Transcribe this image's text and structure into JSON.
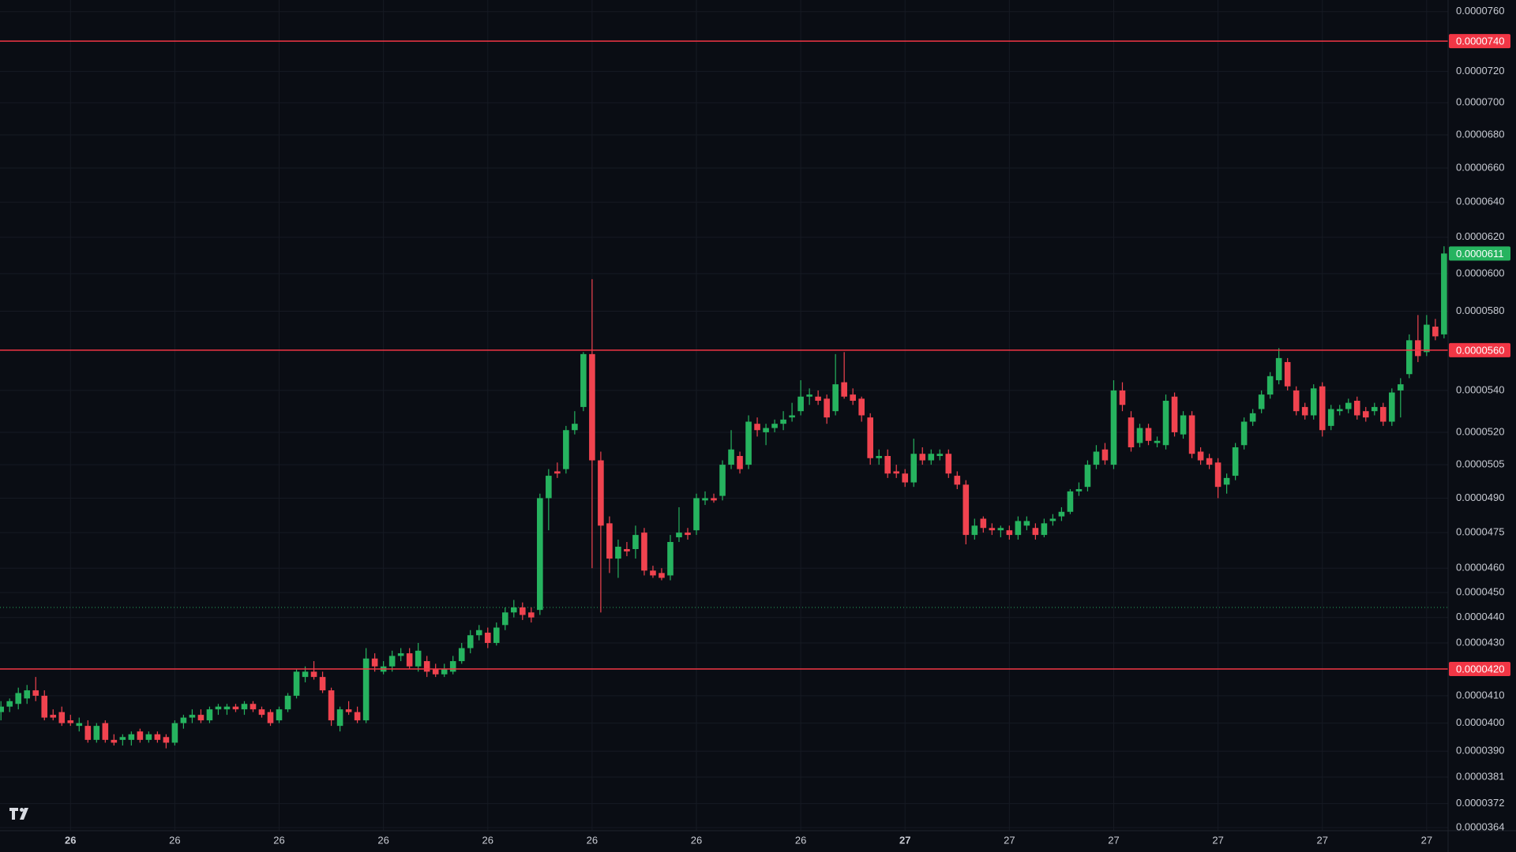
{
  "chart_data": {
    "type": "candlestick",
    "log_scale": true,
    "grid": true,
    "up_color": "#26b35f",
    "down_color": "#f0434f",
    "level_color": "#f23645",
    "reference_color": "#26a65b",
    "ylim": [
      3.63e-05,
      7.68e-05
    ],
    "yticks": [
      {
        "value": 7.6e-05,
        "label": "0.0000760"
      },
      {
        "value": 7.2e-05,
        "label": "0.0000720"
      },
      {
        "value": 7e-05,
        "label": "0.0000700"
      },
      {
        "value": 6.8e-05,
        "label": "0.0000680"
      },
      {
        "value": 6.6e-05,
        "label": "0.0000660"
      },
      {
        "value": 6.4e-05,
        "label": "0.0000640"
      },
      {
        "value": 6.2e-05,
        "label": "0.0000620"
      },
      {
        "value": 6e-05,
        "label": "0.0000600"
      },
      {
        "value": 5.8e-05,
        "label": "0.0000580"
      },
      {
        "value": 5.4e-05,
        "label": "0.0000540"
      },
      {
        "value": 5.2e-05,
        "label": "0.0000520"
      },
      {
        "value": 5.05e-05,
        "label": "0.0000505"
      },
      {
        "value": 4.9e-05,
        "label": "0.0000490"
      },
      {
        "value": 4.75e-05,
        "label": "0.0000475"
      },
      {
        "value": 4.6e-05,
        "label": "0.0000460"
      },
      {
        "value": 4.5e-05,
        "label": "0.0000450"
      },
      {
        "value": 4.4e-05,
        "label": "0.0000440"
      },
      {
        "value": 4.3e-05,
        "label": "0.0000430"
      },
      {
        "value": 4.1e-05,
        "label": "0.0000410"
      },
      {
        "value": 4e-05,
        "label": "0.0000400"
      },
      {
        "value": 3.9e-05,
        "label": "0.0000390"
      },
      {
        "value": 3.81e-05,
        "label": "0.0000381"
      },
      {
        "value": 3.72e-05,
        "label": "0.0000372"
      },
      {
        "value": 3.64e-05,
        "label": "0.0000364"
      }
    ],
    "levels": [
      {
        "value": 7.4e-05,
        "label": "0.0000740"
      },
      {
        "value": 5.6e-05,
        "label": "0.0000560"
      },
      {
        "value": 4.2e-05,
        "label": "0.0000420"
      }
    ],
    "reference_line": 4.44e-05,
    "last_price": {
      "value": 6.11e-05,
      "label": "0.0000611"
    },
    "categories": [
      null,
      null,
      null,
      null,
      null,
      null,
      null,
      null,
      "26",
      null,
      null,
      null,
      null,
      null,
      null,
      null,
      null,
      null,
      null,
      null,
      "26",
      null,
      null,
      null,
      null,
      null,
      null,
      null,
      null,
      null,
      null,
      null,
      "26",
      null,
      null,
      null,
      null,
      null,
      null,
      null,
      null,
      null,
      null,
      null,
      "26",
      null,
      null,
      null,
      null,
      null,
      null,
      null,
      null,
      null,
      null,
      null,
      "26",
      null,
      null,
      null,
      null,
      null,
      null,
      null,
      null,
      null,
      null,
      null,
      "26",
      null,
      null,
      null,
      null,
      null,
      null,
      null,
      null,
      null,
      null,
      null,
      "26",
      null,
      null,
      null,
      null,
      null,
      null,
      null,
      null,
      null,
      null,
      null,
      "26",
      null,
      null,
      null,
      null,
      null,
      null,
      null,
      null,
      null,
      null,
      null,
      "27",
      null,
      null,
      null,
      null,
      null,
      null,
      null,
      null,
      null,
      null,
      null,
      "27",
      null,
      null,
      null,
      null,
      null,
      null,
      null,
      null,
      null,
      null,
      null,
      "27",
      null,
      null,
      null,
      null,
      null,
      null,
      null,
      null,
      null,
      null,
      null,
      "27",
      null,
      null,
      null,
      null,
      null,
      null,
      null,
      null,
      null,
      null,
      null,
      "27",
      null,
      null,
      null,
      null,
      null,
      null,
      null,
      null,
      null,
      null,
      null,
      "27",
      null,
      null
    ],
    "open": [
      4.04e-05,
      4.06e-05,
      4.07e-05,
      4.09e-05,
      4.12e-05,
      4.1e-05,
      4.03e-05,
      4.04e-05,
      4.01e-05,
      3.99e-05,
      3.99e-05,
      3.94e-05,
      4e-05,
      3.94e-05,
      3.94e-05,
      3.94e-05,
      3.97e-05,
      3.94e-05,
      3.96e-05,
      3.95e-05,
      3.93e-05,
      4e-05,
      4.02e-05,
      4.03e-05,
      4.01e-05,
      4.05e-05,
      4.05e-05,
      4.06e-05,
      4.05e-05,
      4.07e-05,
      4.05e-05,
      4.04e-05,
      4.01e-05,
      4.05e-05,
      4.1e-05,
      4.17e-05,
      4.19e-05,
      4.17e-05,
      4.12e-05,
      3.99e-05,
      4.05e-05,
      4.04e-05,
      4.01e-05,
      4.24e-05,
      4.19e-05,
      4.21e-05,
      4.25e-05,
      4.26e-05,
      4.21e-05,
      4.23e-05,
      4.2e-05,
      4.18e-05,
      4.19e-05,
      4.23e-05,
      4.28e-05,
      4.33e-05,
      4.34e-05,
      4.3e-05,
      4.37e-05,
      4.42e-05,
      4.44e-05,
      4.42e-05,
      4.43e-05,
      4.9e-05,
      5.02e-05,
      5.03e-05,
      5.21e-05,
      5.32e-05,
      5.58e-05,
      5.07e-05,
      4.79e-05,
      4.64e-05,
      4.68e-05,
      4.68e-05,
      4.75e-05,
      4.59e-05,
      4.58e-05,
      4.57e-05,
      4.73e-05,
      4.75e-05,
      4.76e-05,
      4.89e-05,
      4.9e-05,
      4.91e-05,
      5.05e-05,
      5.09e-05,
      5.05e-05,
      5.24e-05,
      5.2e-05,
      5.22e-05,
      5.24e-05,
      5.27e-05,
      5.3e-05,
      5.37e-05,
      5.37e-05,
      5.36e-05,
      5.3e-05,
      5.44e-05,
      5.38e-05,
      5.36e-05,
      5.27e-05,
      5.08e-05,
      5.09e-05,
      5.02e-05,
      5.01e-05,
      4.97e-05,
      5.1e-05,
      5.07e-05,
      5.09e-05,
      5.1e-05,
      5e-05,
      4.96e-05,
      4.74e-05,
      4.81e-05,
      4.77e-05,
      4.76e-05,
      4.76e-05,
      4.74e-05,
      4.78e-05,
      4.77e-05,
      4.74e-05,
      4.8e-05,
      4.82e-05,
      4.84e-05,
      4.93e-05,
      4.95e-05,
      5.05e-05,
      5.12e-05,
      5.05e-05,
      5.4e-05,
      5.27e-05,
      5.15e-05,
      5.22e-05,
      5.15e-05,
      5.14e-05,
      5.37e-05,
      5.19e-05,
      5.28e-05,
      5.11e-05,
      5.08e-05,
      5.06e-05,
      4.96e-05,
      5e-05,
      5.14e-05,
      5.25e-05,
      5.31e-05,
      5.38e-05,
      5.45e-05,
      5.54e-05,
      5.4e-05,
      5.32e-05,
      5.28e-05,
      5.42e-05,
      5.23e-05,
      5.3e-05,
      5.31e-05,
      5.35e-05,
      5.3e-05,
      5.3e-05,
      5.32e-05,
      5.25e-05,
      5.4e-05,
      5.48e-05,
      5.65e-05,
      5.59e-05,
      5.72e-05,
      5.68e-05
    ],
    "high": [
      4.08e-05,
      4.09e-05,
      4.13e-05,
      4.14e-05,
      4.17e-05,
      4.12e-05,
      4.05e-05,
      4.06e-05,
      4.03e-05,
      4.02e-05,
      4.01e-05,
      4e-05,
      4.01e-05,
      3.96e-05,
      3.96e-05,
      3.97e-05,
      3.98e-05,
      3.97e-05,
      3.97e-05,
      3.96e-05,
      4.01e-05,
      4.03e-05,
      4.05e-05,
      4.05e-05,
      4.06e-05,
      4.07e-05,
      4.07e-05,
      4.07e-05,
      4.08e-05,
      4.08e-05,
      4.06e-05,
      4.05e-05,
      4.06e-05,
      4.11e-05,
      4.2e-05,
      4.21e-05,
      4.23e-05,
      4.19e-05,
      4.13e-05,
      4.06e-05,
      4.08e-05,
      4.06e-05,
      4.28e-05,
      4.26e-05,
      4.23e-05,
      4.27e-05,
      4.28e-05,
      4.28e-05,
      4.3e-05,
      4.25e-05,
      4.22e-05,
      4.22e-05,
      4.25e-05,
      4.3e-05,
      4.35e-05,
      4.37e-05,
      4.36e-05,
      4.38e-05,
      4.44e-05,
      4.47e-05,
      4.46e-05,
      4.44e-05,
      4.92e-05,
      5.03e-05,
      5.06e-05,
      5.23e-05,
      5.3e-05,
      5.59e-05,
      5.97e-05,
      5.11e-05,
      4.82e-05,
      4.72e-05,
      4.71e-05,
      4.78e-05,
      4.77e-05,
      4.61e-05,
      4.6e-05,
      4.74e-05,
      4.86e-05,
      4.77e-05,
      4.92e-05,
      4.93e-05,
      4.92e-05,
      5.07e-05,
      5.21e-05,
      5.11e-05,
      5.28e-05,
      5.27e-05,
      5.24e-05,
      5.26e-05,
      5.3e-05,
      5.34e-05,
      5.45e-05,
      5.41e-05,
      5.4e-05,
      5.38e-05,
      5.58e-05,
      5.59e-05,
      5.41e-05,
      5.37e-05,
      5.29e-05,
      5.12e-05,
      5.12e-05,
      5.05e-05,
      5.03e-05,
      5.17e-05,
      5.13e-05,
      5.12e-05,
      5.12e-05,
      5.12e-05,
      5.02e-05,
      4.98e-05,
      4.81e-05,
      4.82e-05,
      4.79e-05,
      4.78e-05,
      4.78e-05,
      4.82e-05,
      4.82e-05,
      4.79e-05,
      4.81e-05,
      4.83e-05,
      4.86e-05,
      4.94e-05,
      4.97e-05,
      5.07e-05,
      5.14e-05,
      5.15e-05,
      5.45e-05,
      5.44e-05,
      5.3e-05,
      5.24e-05,
      5.24e-05,
      5.18e-05,
      5.38e-05,
      5.39e-05,
      5.3e-05,
      5.3e-05,
      5.13e-05,
      5.1e-05,
      5.08e-05,
      5.01e-05,
      5.15e-05,
      5.27e-05,
      5.31e-05,
      5.4e-05,
      5.49e-05,
      5.61e-05,
      5.56e-05,
      5.42e-05,
      5.34e-05,
      5.43e-05,
      5.44e-05,
      5.33e-05,
      5.33e-05,
      5.36e-05,
      5.37e-05,
      5.32e-05,
      5.34e-05,
      5.34e-05,
      5.41e-05,
      5.46e-05,
      5.68e-05,
      5.78e-05,
      5.78e-05,
      5.76e-05,
      6.15e-05
    ],
    "low": [
      4.01e-05,
      4.04e-05,
      4.05e-05,
      4.07e-05,
      4.08e-05,
      4.01e-05,
      4.01e-05,
      3.99e-05,
      3.99e-05,
      3.97e-05,
      3.93e-05,
      3.93e-05,
      3.93e-05,
      3.92e-05,
      3.92e-05,
      3.92e-05,
      3.93e-05,
      3.93e-05,
      3.93e-05,
      3.91e-05,
      3.92e-05,
      3.98e-05,
      4e-05,
      4e-05,
      4e-05,
      4.03e-05,
      4.03e-05,
      4.04e-05,
      4.03e-05,
      4.04e-05,
      4.02e-05,
      3.99e-05,
      4e-05,
      4.04e-05,
      4.09e-05,
      4.15e-05,
      4.16e-05,
      4.11e-05,
      3.99e-05,
      3.97e-05,
      4.03e-05,
      4e-05,
      4e-05,
      4.19e-05,
      4.18e-05,
      4.19e-05,
      4.23e-05,
      4.2e-05,
      4.19e-05,
      4.17e-05,
      4.17e-05,
      4.17e-05,
      4.18e-05,
      4.22e-05,
      4.26e-05,
      4.31e-05,
      4.28e-05,
      4.29e-05,
      4.35e-05,
      4.4e-05,
      4.39e-05,
      4.38e-05,
      4.41e-05,
      4.76e-05,
      4.99e-05,
      5.01e-05,
      5.19e-05,
      5.3e-05,
      4.6e-05,
      4.42e-05,
      4.58e-05,
      4.56e-05,
      4.65e-05,
      4.64e-05,
      4.57e-05,
      4.56e-05,
      4.55e-05,
      4.55e-05,
      4.71e-05,
      4.72e-05,
      4.74e-05,
      4.87e-05,
      4.88e-05,
      4.89e-05,
      5.03e-05,
      5.01e-05,
      5.03e-05,
      5.18e-05,
      5.14e-05,
      5.2e-05,
      5.21e-05,
      5.25e-05,
      5.28e-05,
      5.33e-05,
      5.33e-05,
      5.24e-05,
      5.28e-05,
      5.36e-05,
      5.33e-05,
      5.25e-05,
      5.05e-05,
      5.05e-05,
      4.99e-05,
      4.99e-05,
      4.95e-05,
      4.95e-05,
      5.05e-05,
      5.05e-05,
      5.07e-05,
      4.99e-05,
      4.94e-05,
      4.7e-05,
      4.72e-05,
      4.75e-05,
      4.74e-05,
      4.73e-05,
      4.72e-05,
      4.72e-05,
      4.76e-05,
      4.72e-05,
      4.73e-05,
      4.78e-05,
      4.8e-05,
      4.83e-05,
      4.91e-05,
      4.93e-05,
      5.03e-05,
      5.05e-05,
      5.03e-05,
      5.3e-05,
      5.11e-05,
      5.13e-05,
      5.14e-05,
      5.13e-05,
      5.12e-05,
      5.18e-05,
      5.17e-05,
      5.08e-05,
      5.05e-05,
      5.03e-05,
      4.9e-05,
      4.92e-05,
      4.98e-05,
      5.12e-05,
      5.23e-05,
      5.29e-05,
      5.36e-05,
      5.43e-05,
      5.4e-05,
      5.28e-05,
      5.26e-05,
      5.26e-05,
      5.18e-05,
      5.21e-05,
      5.28e-05,
      5.29e-05,
      5.26e-05,
      5.25e-05,
      5.28e-05,
      5.23e-05,
      5.23e-05,
      5.27e-05,
      5.46e-05,
      5.54e-05,
      5.57e-05,
      5.65e-05,
      5.66e-05
    ],
    "close": [
      4.06e-05,
      4.08e-05,
      4.11e-05,
      4.12e-05,
      4.1e-05,
      4.02e-05,
      4.02e-05,
      4e-05,
      4e-05,
      4e-05,
      3.94e-05,
      3.99e-05,
      3.94e-05,
      3.93e-05,
      3.95e-05,
      3.96e-05,
      3.94e-05,
      3.96e-05,
      3.94e-05,
      3.93e-05,
      4e-05,
      4.02e-05,
      4.03e-05,
      4.01e-05,
      4.05e-05,
      4.06e-05,
      4.06e-05,
      4.05e-05,
      4.07e-05,
      4.05e-05,
      4.03e-05,
      4e-05,
      4.05e-05,
      4.1e-05,
      4.19e-05,
      4.19e-05,
      4.17e-05,
      4.12e-05,
      4.01e-05,
      4.05e-05,
      4.04e-05,
      4.01e-05,
      4.24e-05,
      4.21e-05,
      4.21e-05,
      4.25e-05,
      4.26e-05,
      4.21e-05,
      4.27e-05,
      4.19e-05,
      4.18e-05,
      4.2e-05,
      4.23e-05,
      4.28e-05,
      4.33e-05,
      4.35e-05,
      4.3e-05,
      4.36e-05,
      4.42e-05,
      4.44e-05,
      4.41e-05,
      4.4e-05,
      4.9e-05,
      5e-05,
      5.01e-05,
      5.21e-05,
      5.24e-05,
      5.58e-05,
      5.07e-05,
      4.78e-05,
      4.64e-05,
      4.69e-05,
      4.67e-05,
      4.74e-05,
      4.59e-05,
      4.57e-05,
      4.56e-05,
      4.71e-05,
      4.75e-05,
      4.74e-05,
      4.9e-05,
      4.9e-05,
      4.89e-05,
      5.05e-05,
      5.12e-05,
      5.03e-05,
      5.25e-05,
      5.21e-05,
      5.22e-05,
      5.24e-05,
      5.26e-05,
      5.28e-05,
      5.37e-05,
      5.38e-05,
      5.35e-05,
      5.27e-05,
      5.43e-05,
      5.37e-05,
      5.35e-05,
      5.28e-05,
      5.08e-05,
      5.09e-05,
      5.01e-05,
      5.01e-05,
      4.97e-05,
      5.1e-05,
      5.07e-05,
      5.1e-05,
      5.1e-05,
      5.01e-05,
      4.96e-05,
      4.74e-05,
      4.78e-05,
      4.77e-05,
      4.76e-05,
      4.77e-05,
      4.74e-05,
      4.8e-05,
      4.8e-05,
      4.74e-05,
      4.79e-05,
      4.81e-05,
      4.84e-05,
      4.93e-05,
      4.94e-05,
      5.05e-05,
      5.11e-05,
      5.07e-05,
      5.4e-05,
      5.33e-05,
      5.13e-05,
      5.22e-05,
      5.16e-05,
      5.16e-05,
      5.35e-05,
      5.2e-05,
      5.28e-05,
      5.1e-05,
      5.07e-05,
      5.05e-05,
      4.95e-05,
      4.99e-05,
      5.13e-05,
      5.25e-05,
      5.29e-05,
      5.38e-05,
      5.47e-05,
      5.56e-05,
      5.42e-05,
      5.3e-05,
      5.28e-05,
      5.41e-05,
      5.21e-05,
      5.31e-05,
      5.31e-05,
      5.34e-05,
      5.28e-05,
      5.27e-05,
      5.32e-05,
      5.25e-05,
      5.39e-05,
      5.43e-05,
      5.65e-05,
      5.57e-05,
      5.73e-05,
      5.67e-05,
      6.11e-05
    ]
  }
}
